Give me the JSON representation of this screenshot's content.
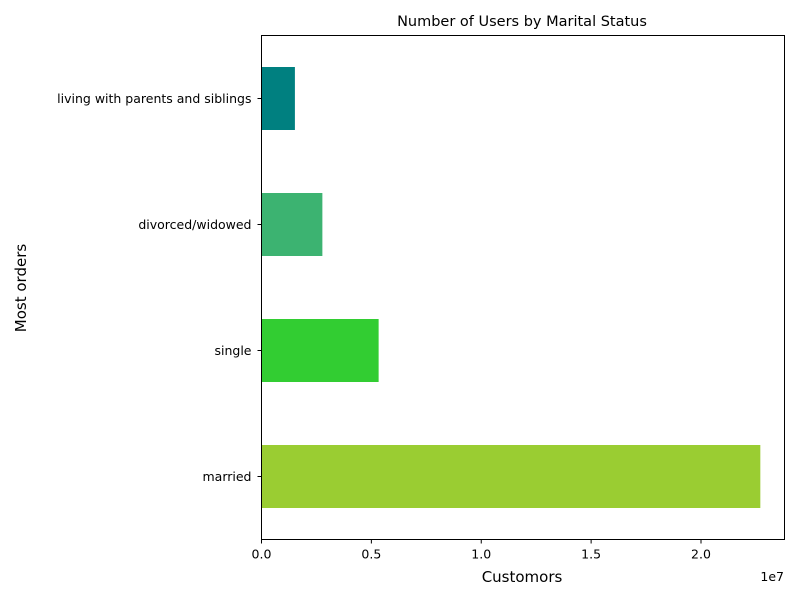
{
  "chart_data": {
    "type": "bar",
    "orientation": "horizontal",
    "title": "Number of Users by Marital Status",
    "xlabel": "Customors",
    "ylabel": "Most orders",
    "x_offset_label": "1e7",
    "x_scale_factor": 10000000,
    "xlim": [
      0,
      23800000
    ],
    "x_ticks": [
      0,
      5000000,
      10000000,
      15000000,
      20000000
    ],
    "x_tick_labels": [
      "0.0",
      "0.5",
      "1.0",
      "1.5",
      "2.0"
    ],
    "categories": [
      "married",
      "single",
      "divorced/widowed",
      "living with parents and siblings"
    ],
    "values": [
      22700000,
      5330000,
      2770000,
      1520000
    ],
    "colors": [
      "#9acd32",
      "#32cd32",
      "#3cb371",
      "#008080"
    ],
    "grid": false,
    "legend": "none"
  }
}
